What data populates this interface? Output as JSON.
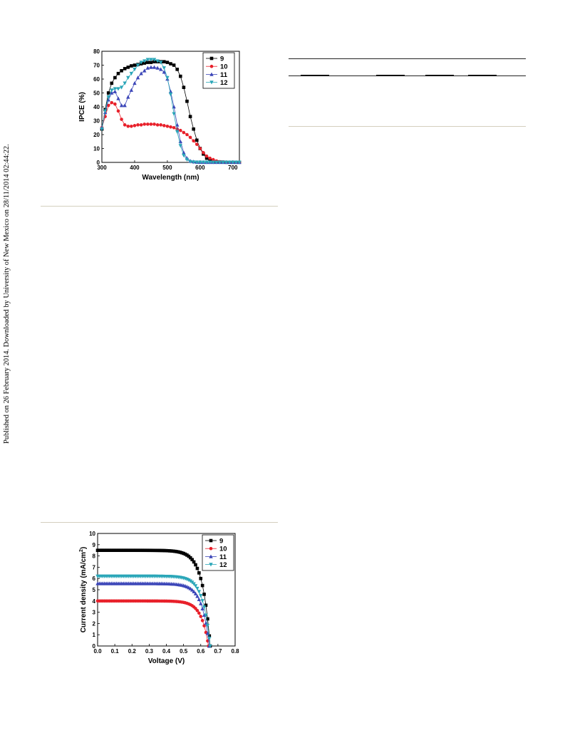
{
  "side_note": "Published on 26 February 2014. Downloaded by University of New Mexico on 28/11/2014 02:44:22.",
  "chart_data": [
    {
      "type": "line",
      "xlabel": "Wavelength (nm)",
      "ylabel": "IPCE (%)",
      "xlim": [
        300,
        720
      ],
      "ylim": [
        0,
        80
      ],
      "xticks": [
        300,
        400,
        500,
        600,
        700
      ],
      "yticks": [
        0,
        10,
        20,
        30,
        40,
        50,
        60,
        70,
        80
      ],
      "legend_position": "top-right",
      "grid": false,
      "series": [
        {
          "name": "9",
          "color": "#000000",
          "marker": "square",
          "x": [
            300,
            310,
            320,
            330,
            340,
            350,
            360,
            370,
            380,
            390,
            400,
            410,
            420,
            430,
            440,
            450,
            460,
            470,
            480,
            490,
            500,
            510,
            520,
            530,
            540,
            550,
            560,
            570,
            580,
            590,
            600,
            610,
            620,
            630,
            640,
            650,
            660,
            670,
            680,
            690,
            700,
            710,
            720
          ],
          "y": [
            24,
            38,
            50,
            57,
            61,
            64,
            66,
            67.5,
            68.5,
            69.5,
            70,
            70.5,
            71,
            71.5,
            72,
            72,
            72.5,
            72.5,
            72.5,
            72.5,
            72,
            71,
            70,
            67,
            62,
            54,
            44,
            33,
            24,
            16,
            10,
            6,
            3,
            2,
            1,
            0.5,
            0.3,
            0.2,
            0.1,
            0.1,
            0.1,
            0.1,
            0.1
          ]
        },
        {
          "name": "10",
          "color": "#e8202a",
          "marker": "circle",
          "x": [
            300,
            310,
            320,
            330,
            340,
            350,
            360,
            370,
            380,
            390,
            400,
            410,
            420,
            430,
            440,
            450,
            460,
            470,
            480,
            490,
            500,
            510,
            520,
            530,
            540,
            550,
            560,
            570,
            580,
            590,
            600,
            610,
            620,
            630,
            640,
            650,
            660,
            670,
            680,
            690,
            700,
            710,
            720
          ],
          "y": [
            25,
            33,
            41,
            43,
            42,
            37,
            31,
            27,
            26,
            26,
            26.5,
            27,
            27,
            27.5,
            27.5,
            27.5,
            27.5,
            27,
            27,
            26.5,
            26,
            25.5,
            25,
            24,
            23,
            21.5,
            20,
            18,
            15.5,
            13,
            10,
            7,
            4.5,
            3,
            2,
            1,
            0.5,
            0.3,
            0.2,
            0.1,
            0.1,
            0.1,
            0.1
          ]
        },
        {
          "name": "11",
          "color": "#3c46b8",
          "marker": "triangle-up",
          "x": [
            300,
            310,
            320,
            330,
            340,
            350,
            360,
            370,
            380,
            390,
            400,
            410,
            420,
            430,
            440,
            450,
            460,
            470,
            480,
            490,
            500,
            510,
            520,
            530,
            540,
            550,
            560,
            570,
            580,
            590,
            600,
            610,
            620,
            630,
            640,
            650,
            660,
            670,
            680,
            690,
            700,
            710,
            720
          ],
          "y": [
            25,
            36,
            45,
            50,
            51,
            46,
            41,
            41,
            47,
            52,
            57,
            61,
            64,
            66,
            68,
            68.5,
            68.5,
            68,
            67,
            65,
            60,
            51,
            40,
            27,
            15,
            7,
            3,
            1,
            0.5,
            0.2,
            0.1,
            0.1,
            0.1,
            0.1,
            0.1,
            0.1,
            0.1,
            0.1,
            0.1,
            0.1,
            0.1,
            0.1,
            0.1
          ]
        },
        {
          "name": "12",
          "color": "#2aa6b8",
          "marker": "triangle-down",
          "x": [
            300,
            310,
            320,
            330,
            340,
            350,
            360,
            370,
            380,
            390,
            400,
            410,
            420,
            430,
            440,
            450,
            460,
            470,
            480,
            490,
            500,
            510,
            520,
            530,
            540,
            550,
            560,
            570,
            580,
            590,
            600,
            610,
            620,
            630,
            640,
            650,
            660,
            670,
            680,
            690,
            700,
            710,
            720
          ],
          "y": [
            24,
            37,
            47,
            52,
            53,
            53,
            54,
            57,
            61,
            64,
            67,
            70,
            72,
            73,
            74,
            74,
            74,
            73,
            72,
            68,
            61,
            49,
            35,
            22,
            12,
            5,
            2,
            0.5,
            0.2,
            0.1,
            0.1,
            0.1,
            0.1,
            0.1,
            0.1,
            0.1,
            0.1,
            0.1,
            0.1,
            0.1,
            0.1,
            0.1,
            0.1
          ]
        }
      ]
    },
    {
      "type": "line",
      "xlabel": "Voltage (V)",
      "ylabel_main": "Current density (mA/cm",
      "ylabel_sup": "2",
      "ylabel_end": ")",
      "xlim": [
        0.0,
        0.8
      ],
      "ylim": [
        0,
        10
      ],
      "xticks": [
        "0.0",
        "0.1",
        "0.2",
        "0.3",
        "0.4",
        "0.5",
        "0.6",
        "0.7",
        "0.8"
      ],
      "yticks": [
        0,
        1,
        2,
        3,
        4,
        5,
        6,
        7,
        8,
        9,
        10
      ],
      "legend_position": "top-right",
      "grid": false,
      "series": [
        {
          "name": "9",
          "color": "#000000",
          "marker": "square",
          "jsc": 8.5,
          "voc": 0.655,
          "n": 0.045
        },
        {
          "name": "10",
          "color": "#e8202a",
          "marker": "circle",
          "jsc": 4.0,
          "voc": 0.645,
          "n": 0.042
        },
        {
          "name": "11",
          "color": "#3c46b8",
          "marker": "triangle-up",
          "jsc": 5.55,
          "voc": 0.65,
          "n": 0.044
        },
        {
          "name": "12",
          "color": "#2aa6b8",
          "marker": "triangle-down",
          "jsc": 6.2,
          "voc": 0.655,
          "n": 0.043
        }
      ]
    }
  ]
}
